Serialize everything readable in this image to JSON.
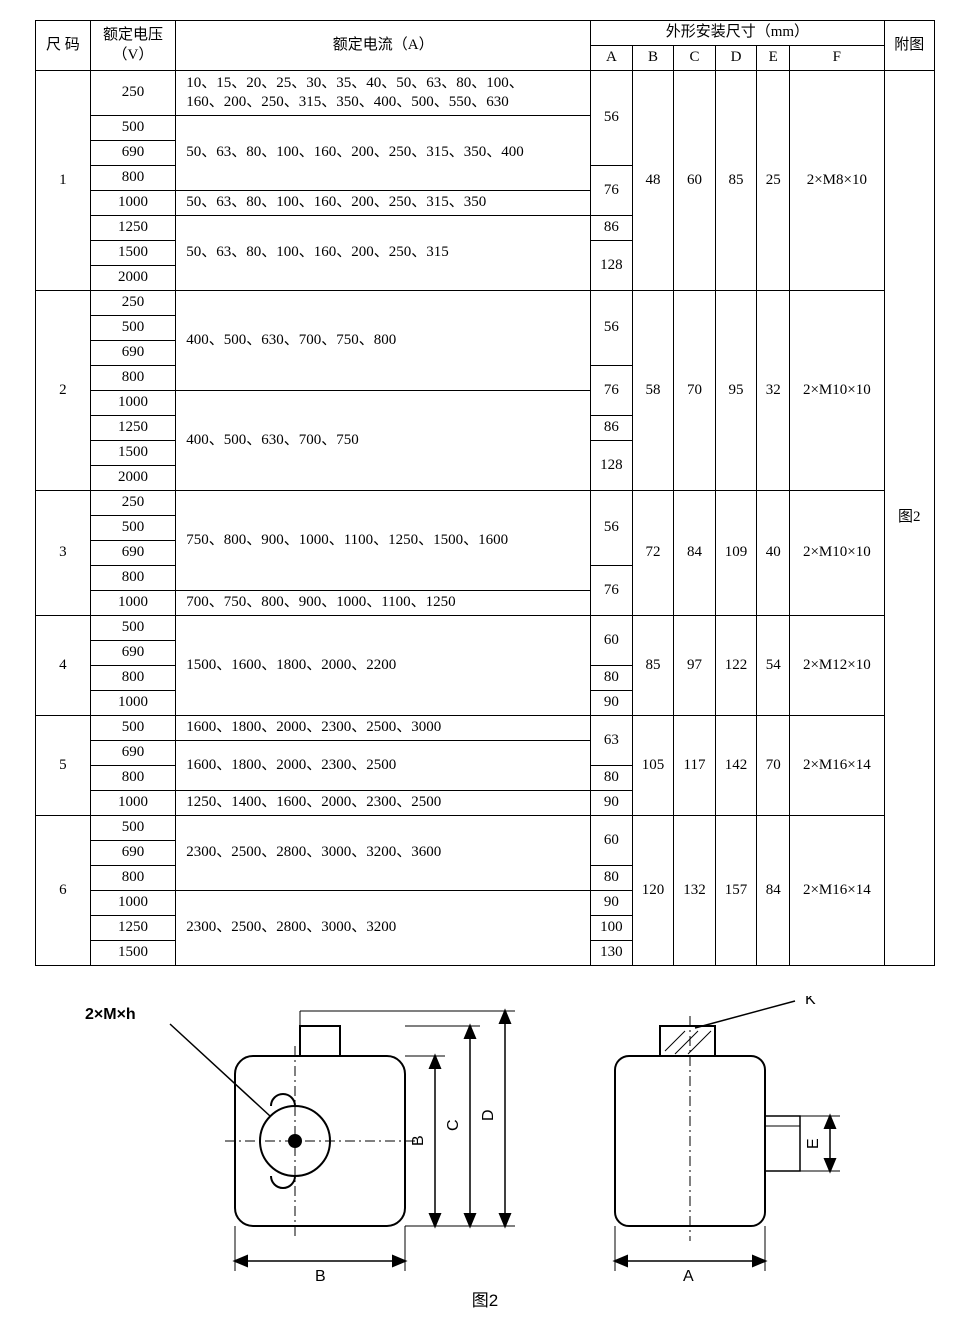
{
  "header": {
    "size_code": "尺 码",
    "rated_voltage": "额定电压\n（V）",
    "rated_current": "额定电流（A）",
    "mounting": "外形安装尺寸（mm）",
    "A": "A",
    "B": "B",
    "C": "C",
    "D": "D",
    "E": "E",
    "F": "F",
    "figure": "附图"
  },
  "fig_ref": "图2",
  "fig_caption": "图2",
  "label_2xmh": "2×M×h",
  "label_K": "K",
  "label_A": "A",
  "label_B": "B",
  "label_C": "C",
  "label_D": "D",
  "label_E": "E",
  "groups": [
    {
      "size": "1",
      "B": "48",
      "C": "60",
      "D": "85",
      "E": "25",
      "F": "2×M8×10",
      "rows": [
        {
          "v": "250",
          "cur": "10、15、20、25、30、35、40、50、63、80、100、\n160、200、250、315、350、400、500、550、630",
          "cur_span": 1,
          "A": "56",
          "A_span": 3,
          "tall": true
        },
        {
          "v": "500",
          "cur": "50、63、80、100、160、200、250、315、350、400",
          "cur_span": 3
        },
        {
          "v": "690"
        },
        {
          "v": "800",
          "A": "76",
          "A_span": 2
        },
        {
          "v": "1000",
          "cur": "50、63、80、100、160、200、250、315、350",
          "cur_span": 1
        },
        {
          "v": "1250",
          "cur": "50、63、80、100、160、200、250、315",
          "cur_span": 3,
          "A": "86",
          "A_span": 1
        },
        {
          "v": "1500",
          "A": "128",
          "A_span": 2
        },
        {
          "v": "2000"
        }
      ]
    },
    {
      "size": "2",
      "B": "58",
      "C": "70",
      "D": "95",
      "E": "32",
      "F": "2×M10×10",
      "rows": [
        {
          "v": "250",
          "cur": "400、500、630、700、750、800",
          "cur_span": 4,
          "A": "56",
          "A_span": 3
        },
        {
          "v": "500"
        },
        {
          "v": "690"
        },
        {
          "v": "800",
          "A": "76",
          "A_span": 2
        },
        {
          "v": "1000",
          "cur": "400、500、630、700、750",
          "cur_span": 4
        },
        {
          "v": "1250",
          "A": "86",
          "A_span": 1
        },
        {
          "v": "1500",
          "A": "128",
          "A_span": 2
        },
        {
          "v": "2000"
        }
      ]
    },
    {
      "size": "3",
      "B": "72",
      "C": "84",
      "D": "109",
      "E": "40",
      "F": "2×M10×10",
      "rows": [
        {
          "v": "250",
          "cur": "750、800、900、1000、1100、1250、1500、1600",
          "cur_span": 4,
          "A": "56",
          "A_span": 3
        },
        {
          "v": "500"
        },
        {
          "v": "690"
        },
        {
          "v": "800",
          "A": "76",
          "A_span": 2
        },
        {
          "v": "1000",
          "cur": "700、750、800、900、1000、1100、1250",
          "cur_span": 1
        }
      ]
    },
    {
      "size": "4",
      "B": "85",
      "C": "97",
      "D": "122",
      "E": "54",
      "F": "2×M12×10",
      "rows": [
        {
          "v": "500",
          "cur": "1500、1600、1800、2000、2200",
          "cur_span": 4,
          "A": "60",
          "A_span": 2
        },
        {
          "v": "690"
        },
        {
          "v": "800",
          "A": "80",
          "A_span": 1
        },
        {
          "v": "1000",
          "A": "90",
          "A_span": 1
        }
      ]
    },
    {
      "size": "5",
      "B": "105",
      "C": "117",
      "D": "142",
      "E": "70",
      "F": "2×M16×14",
      "rows": [
        {
          "v": "500",
          "cur": "1600、1800、2000、2300、2500、3000",
          "cur_span": 1,
          "A": "63",
          "A_span": 2
        },
        {
          "v": "690",
          "cur": "1600、1800、2000、2300、2500",
          "cur_span": 2
        },
        {
          "v": "800",
          "A": "80",
          "A_span": 1
        },
        {
          "v": "1000",
          "cur": "1250、1400、1600、2000、2300、2500",
          "cur_span": 1,
          "A": "90",
          "A_span": 1
        }
      ]
    },
    {
      "size": "6",
      "B": "120",
      "C": "132",
      "D": "157",
      "E": "84",
      "F": "2×M16×14",
      "rows": [
        {
          "v": "500",
          "cur": "2300、2500、2800、3000、3200、3600",
          "cur_span": 3,
          "A": "60",
          "A_span": 2
        },
        {
          "v": "690"
        },
        {
          "v": "800",
          "A": "80",
          "A_span": 1
        },
        {
          "v": "1000",
          "cur": "2300、2500、2800、3000、3200",
          "cur_span": 3,
          "A": "90",
          "A_span": 1
        },
        {
          "v": "1250",
          "A": "100",
          "A_span": 1
        },
        {
          "v": "1500",
          "A": "130",
          "A_span": 1
        }
      ]
    }
  ]
}
